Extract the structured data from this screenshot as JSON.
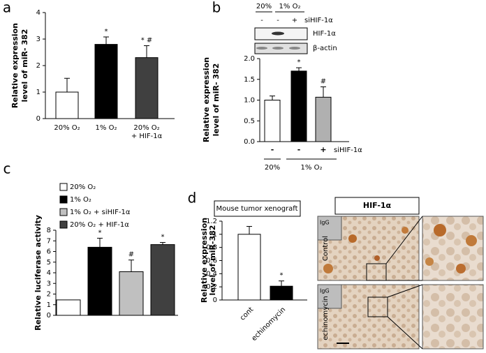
{
  "chart_data": [
    {
      "type": "bar",
      "panel": "a",
      "ylabel": [
        "Relative expression",
        "level of miR- 382"
      ],
      "categories": [
        [
          "20% O₂"
        ],
        [
          "1% O₂"
        ],
        [
          "20% O₂",
          "+ HIF-1α"
        ]
      ],
      "values": [
        1,
        2.8,
        2.3
      ],
      "errors": [
        0.52,
        0.28,
        0.45
      ],
      "significance": [
        null,
        "*",
        "* #"
      ],
      "colors": [
        "#ffffff",
        "#000000",
        "#404040"
      ],
      "ylim": [
        0,
        4
      ],
      "yticks": [
        0,
        1,
        2,
        3,
        4
      ]
    },
    {
      "type": "bar",
      "panel": "b",
      "ylabel": [
        "Relative expression",
        "level of miR- 382"
      ],
      "categories": [
        "-",
        "-",
        "+"
      ],
      "sirna_label": "siHIF-1α",
      "groups": [
        "20%",
        "1% O₂"
      ],
      "values": [
        1.0,
        1.7,
        1.07
      ],
      "errors": [
        0.1,
        0.08,
        0.25
      ],
      "significance": [
        null,
        "*",
        "#"
      ],
      "colors": [
        "#ffffff",
        "#000000",
        "#b0b0b0"
      ],
      "ylim": [
        0,
        2
      ],
      "yticks": [
        {
          "value": 0,
          "label": "0.0"
        },
        {
          "value": 0.5,
          "label": "0.5"
        },
        {
          "value": 1,
          "label": "1.0"
        },
        {
          "value": 1.5,
          "label": "1.5"
        },
        {
          "value": 2,
          "label": "2.0"
        }
      ],
      "blot": {
        "groups": [
          "20%",
          "1% O₂"
        ],
        "sirna": [
          "-",
          "-",
          "+"
        ],
        "sirna_label": "siHIF-1α",
        "bands": [
          "HIF-1α",
          "β-actin"
        ]
      }
    },
    {
      "type": "bar",
      "panel": "c",
      "ylabel": [
        "Relative luciferase activity"
      ],
      "categories": [
        "20% O₂",
        "1% O₂",
        "1% O₂ + siHIF-1α",
        "20% O₂ + HIF-1α"
      ],
      "values": [
        1.45,
        6.4,
        4.1,
        6.65
      ],
      "errors": [
        null,
        0.85,
        1.1,
        0.2
      ],
      "significance": [
        null,
        "*",
        "#",
        "*"
      ],
      "colors": [
        "#ffffff",
        "#000000",
        "#c0c0c0",
        "#404040"
      ],
      "ylim": [
        0,
        8
      ],
      "yticks": [
        0,
        1,
        2,
        3,
        4,
        5,
        6,
        7,
        8
      ],
      "legend": true
    },
    {
      "type": "bar",
      "panel": "d",
      "title": "Mouse tumor xenograft",
      "ylabel": [
        "Relative expression",
        "level of miR-382"
      ],
      "categories": [
        "cont",
        "echinomycin"
      ],
      "values": [
        1,
        0.21
      ],
      "errors": [
        0.12,
        0.08
      ],
      "significance": [
        null,
        "*"
      ],
      "colors": [
        "#ffffff",
        "#000000"
      ],
      "ylim": [
        0,
        1.2
      ],
      "yticks": [
        0,
        0.2,
        0.4,
        0.6,
        0.8,
        1,
        1.2
      ]
    }
  ],
  "histology": {
    "title": "HIF-1α",
    "rows": [
      "Control",
      "echinomycin"
    ],
    "inset": "IgG"
  }
}
